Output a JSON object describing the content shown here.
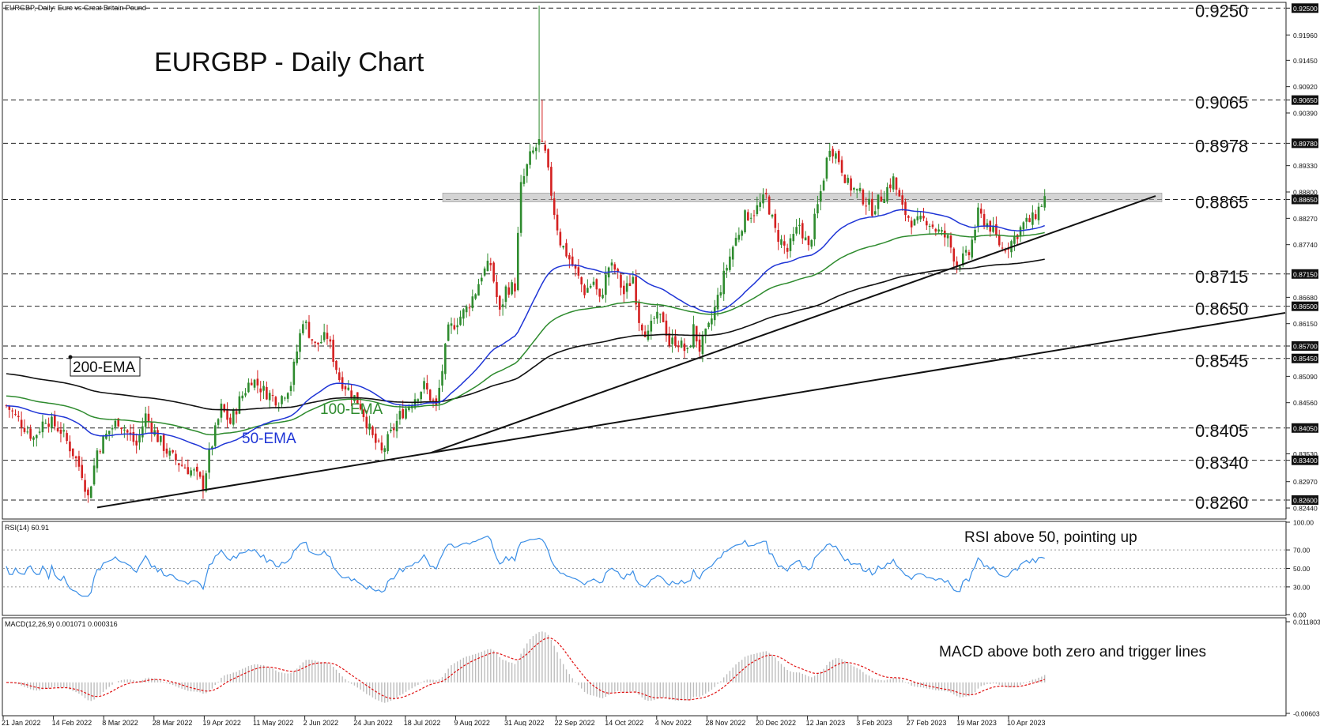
{
  "header": {
    "symbol_line": "EURGBP, Daily:  Euro vs Great Britain Pound",
    "rsi_line": "RSI(14) 60.91",
    "macd_line": "MACD(12,26,9) 0.001071 0.000316"
  },
  "annotations": {
    "title": "EURGBP - Daily Chart",
    "ema200": "200-EMA",
    "ema100": "100-EMA",
    "ema50": "50-EMA",
    "rsi_note": "RSI above 50, pointing up",
    "macd_note": "MACD above both zero and trigger lines"
  },
  "colors": {
    "up": "#2e8b2e",
    "down": "#d42020",
    "ema50": "#1f35d6",
    "ema100": "#2e8b2e",
    "ema200": "#111111",
    "rsi": "#3a8ee6",
    "signal": "#e01010",
    "macd_hist": "#bdbdbd",
    "zone": "#b8b8b8",
    "label_bg": "#111111"
  },
  "chart_data": [
    {
      "type": "candlestick",
      "title": "EURGBP - Daily Chart",
      "ylim": [
        0.8225,
        0.926
      ],
      "x_tick_labels": [
        "21 Jan 2022",
        "14 Feb 2022",
        "8 Mar 2022",
        "28 Mar 2022",
        "19 Apr 2022",
        "11 May 2022",
        "2 Jun 2022",
        "24 Jun 2022",
        "18 Jul 2022",
        "9 Aug 2022",
        "31 Aug 2022",
        "22 Sep 2022",
        "14 Oct 2022",
        "4 Nov 2022",
        "28 Nov 2022",
        "20 Dec 2022",
        "12 Jan 2023",
        "3 Feb 2023",
        "27 Feb 2023",
        "19 Mar 2023",
        "10 Apr 2023"
      ],
      "y_axis_ticks": [
        "0.92500",
        "0.91960",
        "0.91450",
        "0.90920",
        "0.90650",
        "0.90390",
        "0.89780",
        "0.89330",
        "0.88800",
        "0.88650",
        "0.88270",
        "0.87740",
        "0.87150",
        "0.86680",
        "0.86500",
        "0.86150",
        "0.85700",
        "0.85450",
        "0.85090",
        "0.84560",
        "0.84050",
        "0.83530",
        "0.83400",
        "0.82970",
        "0.82600",
        "0.82440"
      ],
      "highlighted_axis_values": [
        "0.92500",
        "0.90650",
        "0.89780",
        "0.88650",
        "0.87150",
        "0.86500",
        "0.85700",
        "0.85450",
        "0.84050",
        "0.83400",
        "0.82600"
      ],
      "levels": [
        "0.9250",
        "0.9065",
        "0.8978",
        "0.8865",
        "0.8715",
        "0.8650",
        "0.8545",
        "0.8405",
        "0.8340",
        "0.8260"
      ],
      "dashed_level_values": [
        0.925,
        0.9065,
        0.8978,
        0.8865,
        0.8715,
        0.865,
        0.857,
        0.8545,
        0.8405,
        0.834,
        0.826
      ],
      "resistance_zone": [
        0.886,
        0.8878
      ],
      "trendlines": [
        {
          "from": [
            "8 Mar 2022",
            0.8245
          ],
          "to": [
            "14 Jul 2022",
            0.8355
          ],
          "extended_through": 0.8605
        },
        {
          "from": [
            "14 Jul 2022",
            0.8355
          ],
          "to": [
            "10 Apr 2023",
            0.8755
          ],
          "extended_through": 0.887
        }
      ],
      "ema_annotations": [
        "50-EMA",
        "100-EMA",
        "200-EMA"
      ],
      "approx_ema200_end": 0.872,
      "last_close_approx": 0.8868
    },
    {
      "type": "line",
      "name": "RSI(14)",
      "last_value": 60.91,
      "ylim": [
        0,
        100
      ],
      "tick_labels": [
        "100.00",
        "70.00",
        "50.00",
        "30.00",
        "0.00"
      ],
      "reference_levels": [
        70,
        50,
        30
      ]
    },
    {
      "type": "bar",
      "name": "MACD(12,26,9)",
      "macd_value": 0.001071,
      "signal_value": 0.000316,
      "tick_labels": [
        "0.011803",
        "-0.006031"
      ],
      "ylim": [
        -0.006031,
        0.011803
      ]
    }
  ]
}
